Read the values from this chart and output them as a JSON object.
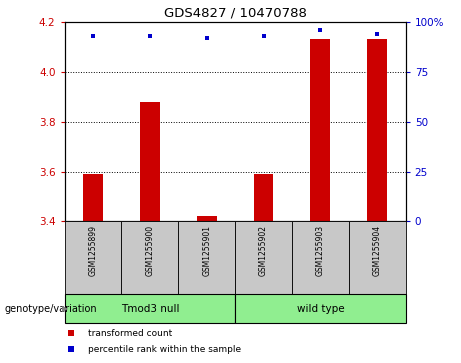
{
  "title": "GDS4827 / 10470788",
  "samples": [
    "GSM1255899",
    "GSM1255900",
    "GSM1255901",
    "GSM1255902",
    "GSM1255903",
    "GSM1255904"
  ],
  "red_values": [
    3.59,
    3.88,
    3.42,
    3.59,
    4.13,
    4.13
  ],
  "blue_values": [
    93,
    93,
    92,
    93,
    96,
    94
  ],
  "ylim_left": [
    3.4,
    4.2
  ],
  "ylim_right": [
    0,
    100
  ],
  "yticks_left": [
    3.4,
    3.6,
    3.8,
    4.0,
    4.2
  ],
  "yticks_right": [
    0,
    25,
    50,
    75,
    100
  ],
  "groups": [
    {
      "label": "Tmod3 null",
      "span": [
        0,
        3
      ]
    },
    {
      "label": "wild type",
      "span": [
        3,
        6
      ]
    }
  ],
  "group_label": "genotype/variation",
  "legend_red": "transformed count",
  "legend_blue": "percentile rank within the sample",
  "bar_color": "#CC0000",
  "dot_color": "#0000CC",
  "label_color_left": "#CC0000",
  "label_color_right": "#0000CC",
  "sample_bg": "#C8C8C8",
  "group_bg": "#90EE90",
  "dotted_yticks": [
    3.6,
    3.8,
    4.0
  ],
  "bar_width": 0.35
}
